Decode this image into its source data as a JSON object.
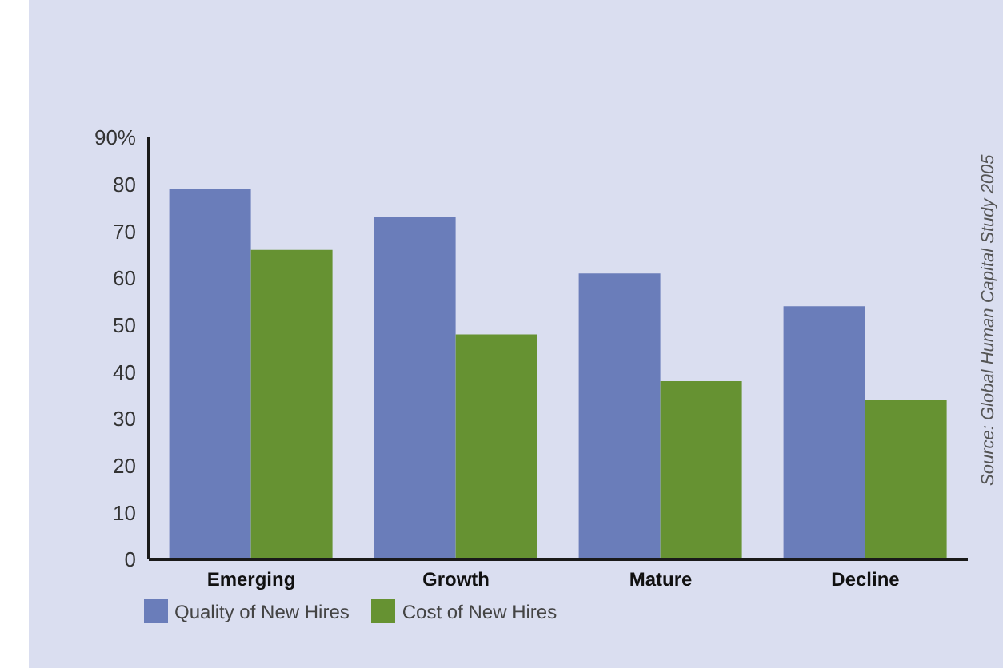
{
  "chart_data": {
    "type": "bar",
    "categories": [
      "Emerging",
      "Growth",
      "Mature",
      "Decline"
    ],
    "series": [
      {
        "name": "Quality of New Hires",
        "color": "#6a7dba",
        "values": [
          79,
          73,
          61,
          54
        ]
      },
      {
        "name": "Cost of New Hires",
        "color": "#669232",
        "values": [
          66,
          48,
          38,
          34
        ]
      }
    ],
    "ylim": [
      0,
      90
    ],
    "yticks": [
      0,
      10,
      20,
      30,
      40,
      50,
      60,
      70,
      80,
      {
        "value": 90,
        "label": "90%"
      }
    ],
    "grid": false,
    "legend": "bottom left",
    "annotations": [
      "Source: Global Human Capital Study 2005"
    ]
  }
}
